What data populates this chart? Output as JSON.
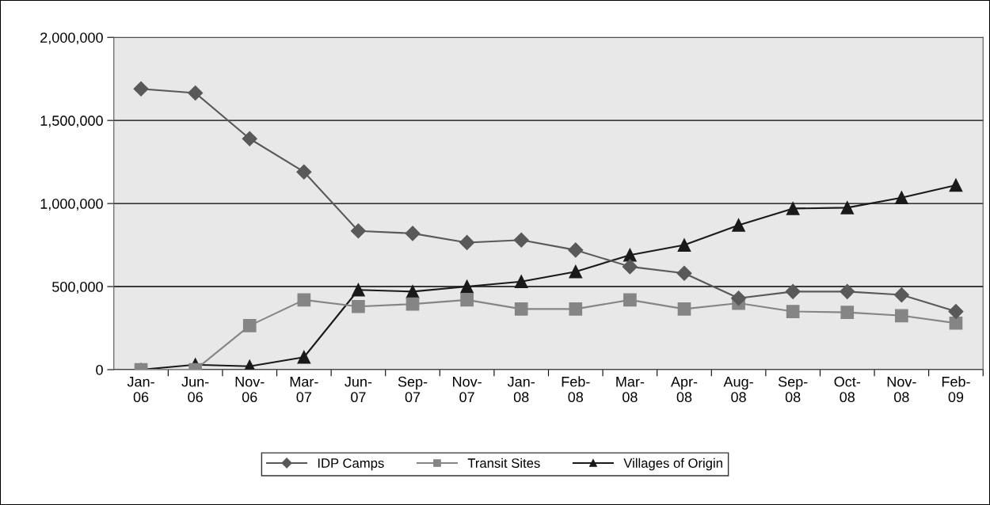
{
  "chart_data": {
    "type": "line",
    "categories": [
      "Jan-06",
      "Jun-06",
      "Nov-06",
      "Mar-07",
      "Jun-07",
      "Sep-07",
      "Nov-07",
      "Jan-08",
      "Feb-08",
      "Mar-08",
      "Apr-08",
      "Aug-08",
      "Sep-08",
      "Oct-08",
      "Nov-08",
      "Feb-09"
    ],
    "series": [
      {
        "name": "IDP Camps",
        "color": "#595959",
        "marker": "diamond",
        "values": [
          1690000,
          1665000,
          1390000,
          1190000,
          835000,
          820000,
          765000,
          780000,
          720000,
          620000,
          580000,
          430000,
          470000,
          470000,
          450000,
          350000
        ]
      },
      {
        "name": "Transit Sites",
        "color": "#858585",
        "marker": "square",
        "values": [
          0,
          0,
          265000,
          420000,
          380000,
          395000,
          420000,
          365000,
          365000,
          420000,
          365000,
          400000,
          350000,
          345000,
          325000,
          280000
        ]
      },
      {
        "name": "Villages of Origin",
        "color": "#1a1a1a",
        "marker": "triangle",
        "values": [
          0,
          30000,
          20000,
          75000,
          480000,
          470000,
          500000,
          530000,
          590000,
          690000,
          750000,
          870000,
          970000,
          975000,
          1035000,
          1110000
        ]
      }
    ],
    "ylim": [
      0,
      2000000
    ],
    "yticks": [
      0,
      {
        "value": 500000,
        "label": "500,000"
      },
      {
        "value": 1000000,
        "label": "1,000,000"
      },
      {
        "value": 1500000,
        "label": "1,500,000"
      },
      {
        "value": 2000000,
        "label": "2,000,000"
      }
    ],
    "grid": "y",
    "legend": "bottom",
    "line_style": "solid"
  }
}
